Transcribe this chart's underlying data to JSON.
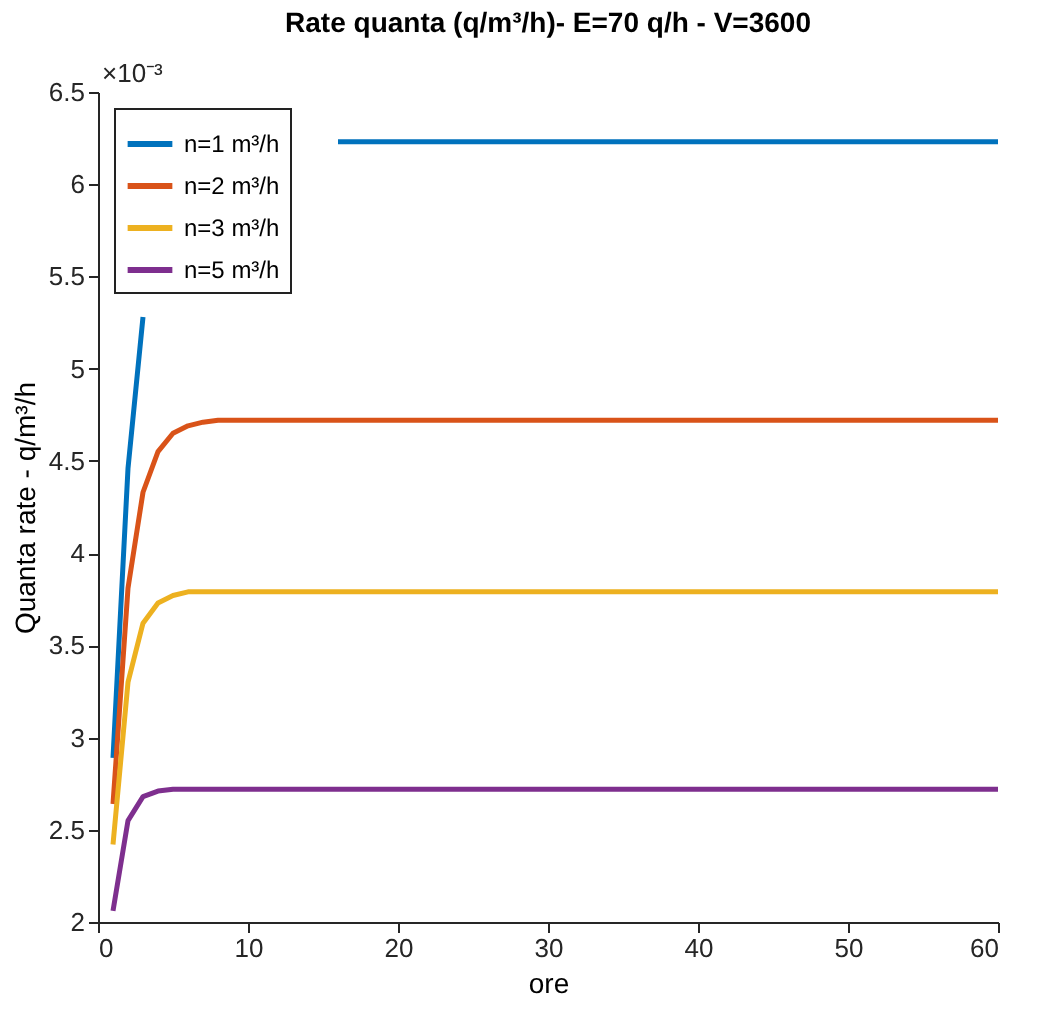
{
  "chart_data": {
    "type": "line",
    "title": "Rate quanta (q/m³/h)- E=70 q/h  - V=3600",
    "xlabel": "ore",
    "ylabel": "Quanta rate - q/m³/h",
    "annotations": [
      "×10⁻³"
    ],
    "series": [
      {
        "name": "n=1 m³/h",
        "color": "#0072bd",
        "x": [
          1,
          2,
          3,
          4,
          16,
          60
        ],
        "values": [
          2.89,
          4.46,
          5.28,
          null,
          6.23,
          6.23
        ]
      },
      {
        "name": "n=2 m³/h",
        "color": "#d95319",
        "x": [
          1,
          2,
          3,
          4,
          5,
          6,
          7,
          8,
          10,
          60
        ],
        "values": [
          2.64,
          3.81,
          4.33,
          4.55,
          4.65,
          4.69,
          4.71,
          4.72,
          4.72,
          4.72
        ]
      },
      {
        "name": "n=3 m³/h",
        "color": "#edb120",
        "x": [
          1,
          2,
          3,
          4,
          5,
          6,
          7,
          8,
          60
        ],
        "values": [
          2.42,
          3.3,
          3.62,
          3.73,
          3.77,
          3.79,
          3.79,
          3.79,
          3.79
        ]
      },
      {
        "name": "n=5 m³/h",
        "color": "#7e2f8e",
        "x": [
          1,
          2,
          3,
          4,
          5,
          6,
          60
        ],
        "values": [
          2.06,
          2.55,
          2.68,
          2.71,
          2.72,
          2.72,
          2.72
        ]
      }
    ],
    "xlim": [
      0,
      60
    ],
    "xticks": [
      0,
      10,
      20,
      30,
      40,
      50,
      60
    ],
    "ylim": [
      2,
      6.5
    ],
    "yticks": [
      2,
      2.5,
      3,
      3.5,
      4,
      4.5,
      5,
      5.5,
      6,
      6.5
    ],
    "grid": false,
    "legend": "top left",
    "marker": "none",
    "line_style": "solid"
  }
}
